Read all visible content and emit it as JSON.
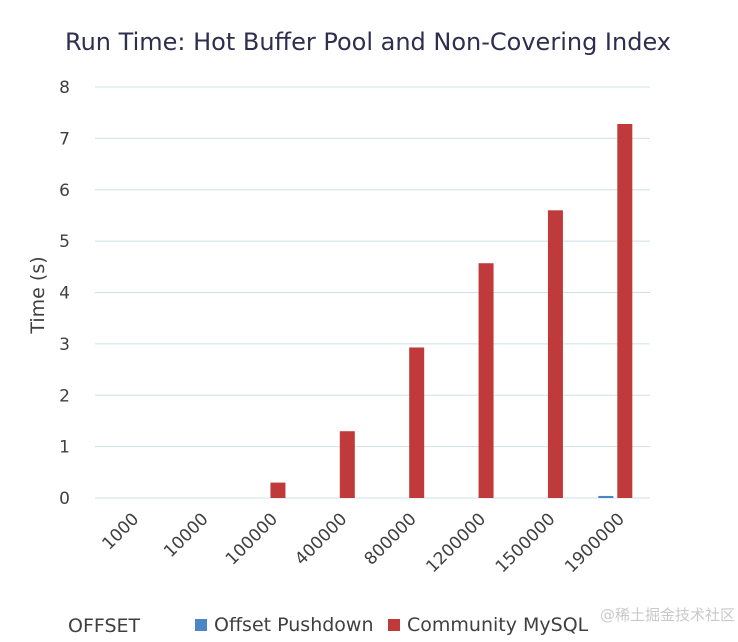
{
  "chart_data": {
    "type": "bar",
    "title": "Run Time: Hot Buffer Pool and Non-Covering Index",
    "xlabel": "OFFSET",
    "ylabel": "Time (s)",
    "ylim": [
      0,
      8
    ],
    "yticks": [
      "0",
      "1",
      "2",
      "3",
      "4",
      "5",
      "6",
      "7",
      "8"
    ],
    "categories": [
      "1000",
      "10000",
      "100000",
      "400000",
      "800000",
      "1200000",
      "1500000",
      "1900000"
    ],
    "series": [
      {
        "name": "Offset Pushdown",
        "color": "#4a86c5",
        "values": [
          0,
          0,
          0,
          0,
          0,
          0,
          0,
          0.04
        ]
      },
      {
        "name": "Community MySQL",
        "color": "#c0393b",
        "values": [
          0,
          0,
          0.3,
          1.3,
          2.93,
          4.57,
          5.6,
          7.28
        ]
      }
    ],
    "grid": true,
    "legend": "bottom"
  },
  "watermark": "@稀土掘金技术社区"
}
